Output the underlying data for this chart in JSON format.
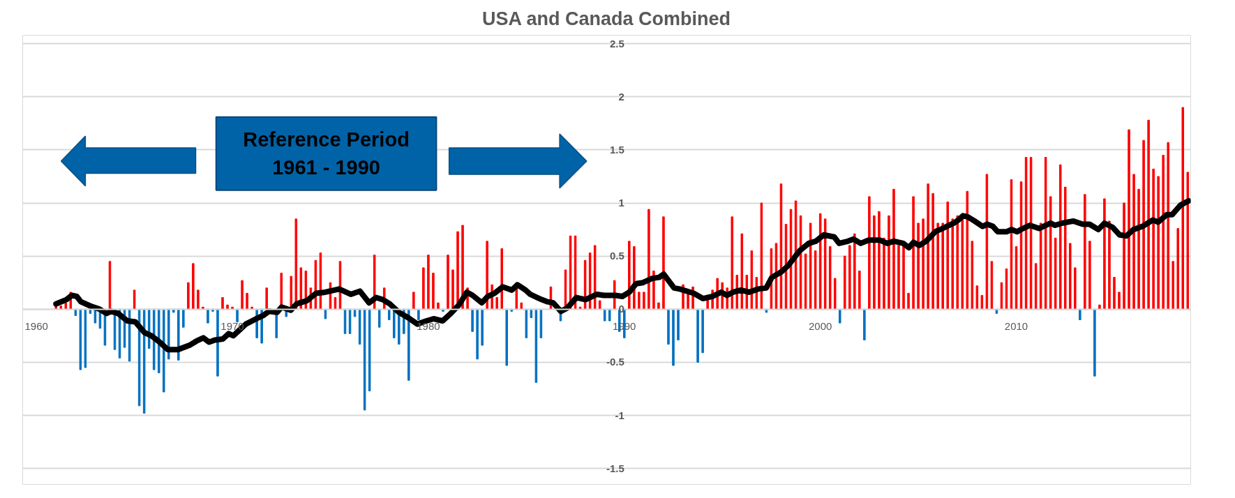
{
  "chart_data": {
    "type": "bar",
    "title": "USA and Canada Combined",
    "annotations": [
      "Reference Period\n1961 - 1990"
    ],
    "xlim": [
      1959.3,
      2018.9
    ],
    "xticks": [
      1960,
      1970,
      1980,
      1990,
      2000,
      2010
    ],
    "ylim": [
      -1.65,
      2.58
    ],
    "yticks": [
      -1.5,
      -1,
      -0.5,
      0,
      0.5,
      1,
      1.5,
      2,
      2.5
    ],
    "grid": "y",
    "series": [
      {
        "x": [
          1961,
          1961.25,
          1961.5,
          1961.75,
          1962,
          1962.25,
          1962.5,
          1962.75,
          1963,
          1963.25,
          1963.5,
          1963.75,
          1964,
          1964.25,
          1964.5,
          1964.75,
          1965,
          1965.25,
          1965.5,
          1965.75,
          1966,
          1966.25,
          1966.5,
          1966.75,
          1967,
          1967.25,
          1967.5,
          1967.75,
          1968,
          1968.25,
          1968.5,
          1968.75,
          1969,
          1969.25,
          1969.5,
          1969.75,
          1970,
          1970.25,
          1970.5,
          1970.75,
          1971,
          1971.25,
          1971.5,
          1971.75,
          1972,
          1972.25,
          1972.5,
          1972.75,
          1973,
          1973.25,
          1973.5,
          1973.75,
          1974,
          1974.25,
          1974.5,
          1974.75,
          1975,
          1975.25,
          1975.5,
          1975.75,
          1976,
          1976.25,
          1976.5,
          1976.75,
          1977,
          1977.25,
          1977.5,
          1977.75,
          1978,
          1978.25,
          1978.5,
          1978.75,
          1979,
          1979.25,
          1979.5,
          1979.75,
          1980,
          1980.25,
          1980.5,
          1980.75,
          1981,
          1981.25,
          1981.5,
          1981.75,
          1982,
          1982.25,
          1982.5,
          1982.75,
          1983,
          1983.25,
          1983.5,
          1983.75,
          1984,
          1984.25,
          1984.5,
          1984.75,
          1985,
          1985.25,
          1985.5,
          1985.75,
          1986,
          1986.25,
          1986.5,
          1986.75,
          1987,
          1987.25,
          1987.5,
          1987.75,
          1988,
          1988.25,
          1988.5,
          1988.75,
          1989,
          1989.25,
          1989.5,
          1989.75,
          1990,
          1990.25,
          1990.5,
          1990.75,
          1991,
          1991.25,
          1991.5,
          1991.75,
          1992,
          1992.25,
          1992.5,
          1992.75,
          1993,
          1993.25,
          1993.5,
          1993.75,
          1994,
          1994.25,
          1994.5,
          1994.75,
          1995,
          1995.25,
          1995.5,
          1995.75,
          1996,
          1996.25,
          1996.5,
          1996.75,
          1997,
          1997.25,
          1997.5,
          1997.75,
          1998,
          1998.25,
          1998.5,
          1998.75,
          1999,
          1999.25,
          1999.5,
          1999.75,
          2000,
          2000.25,
          2000.5,
          2000.75,
          2001,
          2001.25,
          2001.5,
          2001.75,
          2002,
          2002.25,
          2002.5,
          2002.75,
          2003,
          2003.25,
          2003.5,
          2003.75,
          2004,
          2004.25,
          2004.5,
          2004.75,
          2005,
          2005.25,
          2005.5,
          2005.75,
          2006,
          2006.25,
          2006.5,
          2006.75,
          2007,
          2007.25,
          2007.5,
          2007.75,
          2008,
          2008.25,
          2008.5,
          2008.75,
          2009,
          2009.25,
          2009.5,
          2009.75,
          2010,
          2010.25,
          2010.5,
          2010.75,
          2011,
          2011.25,
          2011.5,
          2011.75,
          2012,
          2012.25,
          2012.5,
          2012.75,
          2013,
          2013.25,
          2013.5,
          2013.75,
          2014,
          2014.25,
          2014.5,
          2014.75,
          2015,
          2015.25,
          2015.5,
          2015.75,
          2016,
          2016.25,
          2016.5,
          2016.75,
          2017,
          2017.25,
          2017.5,
          2017.75,
          2018,
          2018.25,
          2018.5,
          2018.75
        ],
        "values": [
          0.03,
          0.03,
          0.06,
          0.16,
          -0.06,
          -0.57,
          -0.55,
          -0.04,
          -0.13,
          -0.18,
          -0.34,
          0.45,
          -0.38,
          -0.46,
          -0.36,
          -0.49,
          0.18,
          -0.91,
          -0.98,
          -0.37,
          -0.57,
          -0.6,
          -0.78,
          -0.47,
          -0.03,
          -0.48,
          -0.17,
          0.25,
          0.43,
          0.18,
          0.02,
          -0.13,
          -0.02,
          -0.63,
          0.11,
          0.04,
          0.02,
          -0.12,
          0.27,
          0.15,
          0.02,
          -0.27,
          -0.32,
          0.2,
          null,
          -0.27,
          0.34,
          -0.07,
          0.31,
          0.85,
          0.39,
          0.36,
          0.2,
          0.46,
          0.53,
          -0.09,
          0.25,
          0.11,
          0.45,
          -0.23,
          -0.23,
          -0.07,
          -0.33,
          -0.95,
          -0.77,
          0.51,
          -0.17,
          0.2,
          -0.1,
          -0.27,
          -0.33,
          -0.23,
          -0.67,
          0.16,
          -0.1,
          0.39,
          0.51,
          0.34,
          0.06,
          -0.02,
          0.51,
          0.37,
          0.73,
          0.79,
          0.2,
          -0.21,
          -0.47,
          -0.34,
          0.64,
          0.23,
          0.11,
          0.57,
          -0.53,
          -0.02,
          0.25,
          0.06,
          -0.27,
          -0.08,
          -0.69,
          -0.27,
          null,
          0.21,
          null,
          -0.11,
          0.37,
          0.69,
          0.69,
          0.02,
          0.46,
          0.53,
          0.6,
          0.08,
          -0.11,
          -0.11,
          0.27,
          -0.21,
          -0.27,
          0.64,
          0.59,
          0.16,
          0.16,
          0.94,
          0.36,
          0.06,
          0.87,
          -0.33,
          -0.53,
          -0.29,
          0.23,
          0.16,
          0.21,
          -0.5,
          -0.41,
          0.11,
          0.18,
          0.29,
          0.25,
          0.2,
          0.87,
          0.32,
          0.71,
          0.32,
          0.55,
          0.3,
          1.0,
          -0.03,
          0.57,
          0.62,
          1.18,
          0.8,
          0.94,
          1.02,
          0.88,
          0.52,
          0.81,
          0.55,
          0.9,
          0.85,
          0.59,
          0.29,
          -0.13,
          0.5,
          0.6,
          0.71,
          0.36,
          -0.29,
          1.06,
          0.88,
          0.92,
          0.67,
          0.88,
          1.13,
          0.6,
          0.6,
          0.15,
          1.06,
          0.81,
          0.85,
          1.18,
          1.09,
          0.81,
          0.81,
          1.01,
          0.85,
          0.88,
          0.85,
          1.11,
          0.64,
          0.22,
          0.13,
          1.27,
          0.45,
          -0.04,
          0.25,
          0.38,
          1.22,
          0.59,
          1.2,
          1.43,
          1.43,
          0.43,
          0.81,
          1.43,
          1.06,
          0.67,
          1.36,
          1.15,
          0.62,
          0.39,
          -0.1,
          1.08,
          0.64,
          -0.63,
          0.04,
          1.04,
          0.83,
          0.3,
          0.16,
          1.0,
          1.69,
          1.27,
          1.13,
          1.59,
          1.78,
          1.32,
          1.25,
          1.45,
          1.57,
          0.45,
          0.76,
          1.9,
          1.29
        ],
        "colors": [
          "#ff0000",
          "#ff0000",
          "#ff0000",
          "#ff0000",
          "#0070c0",
          "#0070c0",
          "#0070c0",
          "#0070c0",
          "#0070c0",
          "#0070c0",
          "#0070c0",
          "#ff0000",
          "#0070c0",
          "#0070c0",
          "#0070c0",
          "#0070c0",
          "#ff0000",
          "#0070c0",
          "#0070c0",
          "#0070c0",
          "#0070c0",
          "#0070c0",
          "#0070c0",
          "#0070c0",
          "#0070c0",
          "#0070c0",
          "#0070c0",
          "#ff0000",
          "#ff0000",
          "#ff0000",
          "#ff0000",
          "#0070c0",
          "#0070c0",
          "#0070c0",
          "#ff0000",
          "#ff0000",
          "#ff0000",
          "#0070c0",
          "#ff0000",
          "#ff0000",
          "#ff0000",
          "#0070c0",
          "#0070c0",
          "#ff0000",
          "#ff0000",
          "#0070c0",
          "#ff0000",
          "#0070c0",
          "#ff0000",
          "#ff0000",
          "#ff0000",
          "#ff0000",
          "#ff0000",
          "#ff0000",
          "#ff0000",
          "#0070c0",
          "#ff0000",
          "#ff0000",
          "#ff0000",
          "#0070c0",
          "#0070c0",
          "#0070c0",
          "#0070c0",
          "#0070c0",
          "#0070c0",
          "#ff0000",
          "#0070c0",
          "#ff0000",
          "#0070c0",
          "#0070c0",
          "#0070c0",
          "#0070c0",
          "#0070c0",
          "#ff0000",
          "#0070c0",
          "#ff0000",
          "#ff0000",
          "#ff0000",
          "#ff0000",
          "#0070c0",
          "#ff0000",
          "#ff0000",
          "#ff0000",
          "#ff0000",
          "#ff0000",
          "#0070c0",
          "#0070c0",
          "#0070c0",
          "#ff0000",
          "#ff0000",
          "#ff0000",
          "#ff0000",
          "#0070c0",
          "#0070c0",
          "#ff0000",
          "#ff0000",
          "#0070c0",
          "#0070c0",
          "#0070c0",
          "#0070c0",
          "#ff0000",
          "#ff0000",
          "#ff0000",
          "#0070c0",
          "#ff0000",
          "#ff0000",
          "#ff0000",
          "#ff0000",
          "#ff0000",
          "#ff0000",
          "#ff0000",
          "#ff0000",
          "#0070c0",
          "#0070c0",
          "#ff0000",
          "#0070c0",
          "#0070c0",
          "#ff0000",
          "#ff0000",
          "#ff0000",
          "#ff0000",
          "#ff0000",
          "#ff0000",
          "#ff0000",
          "#ff0000",
          "#0070c0",
          "#0070c0",
          "#0070c0",
          "#ff0000",
          "#ff0000",
          "#ff0000",
          "#0070c0",
          "#0070c0",
          "#ff0000",
          "#ff0000",
          "#ff0000",
          "#ff0000",
          "#ff0000",
          "#ff0000",
          "#ff0000",
          "#ff0000",
          "#ff0000",
          "#ff0000",
          "#ff0000",
          "#ff0000",
          "#0070c0",
          "#ff0000",
          "#ff0000",
          "#ff0000",
          "#ff0000",
          "#ff0000",
          "#ff0000",
          "#ff0000",
          "#ff0000",
          "#ff0000",
          "#ff0000",
          "#ff0000",
          "#ff0000",
          "#ff0000",
          "#ff0000",
          "#0070c0",
          "#ff0000",
          "#ff0000",
          "#ff0000",
          "#ff0000",
          "#0070c0",
          "#ff0000",
          "#ff0000",
          "#ff0000",
          "#ff0000",
          "#ff0000",
          "#ff0000",
          "#ff0000",
          "#ff0000",
          "#ff0000",
          "#ff0000",
          "#ff0000",
          "#ff0000",
          "#ff0000",
          "#ff0000",
          "#ff0000",
          "#ff0000",
          "#ff0000",
          "#ff0000",
          "#ff0000",
          "#ff0000",
          "#ff0000",
          "#ff0000",
          "#ff0000",
          "#ff0000",
          "#ff0000",
          "#ff0000",
          "#0070c0",
          "#ff0000",
          "#ff0000",
          "#ff0000",
          "#ff0000",
          "#ff0000",
          "#ff0000",
          "#ff0000",
          "#ff0000",
          "#ff0000",
          "#ff0000",
          "#ff0000",
          "#ff0000",
          "#ff0000",
          "#ff0000",
          "#ff0000",
          "#ff0000",
          "#0070c0",
          "#ff0000",
          "#ff0000",
          "#0070c0",
          "#ff0000",
          "#ff0000",
          "#ff0000",
          "#ff0000",
          "#ff0000",
          "#ff0000",
          "#ff0000",
          "#ff0000",
          "#ff0000",
          "#ff0000",
          "#ff0000",
          "#ff0000",
          "#ff0000",
          "#ff0000",
          "#ff0000",
          "#ff0000",
          "#ff0000",
          "#ff0000",
          "#ff0000"
        ]
      },
      {
        "type": "line",
        "color": "#000000",
        "x": [
          1961.0,
          1961.53,
          1961.8,
          1962.06,
          1962.27,
          1962.76,
          1963.23,
          1963.58,
          1963.82,
          1964.17,
          1964.64,
          1965.05,
          1965.52,
          1965.87,
          1966.29,
          1966.7,
          1967.23,
          1967.81,
          1968.17,
          1968.52,
          1968.81,
          1969.11,
          1969.52,
          1969.81,
          1970.05,
          1970.34,
          1970.69,
          1971.22,
          1971.57,
          1971.87,
          1972.28,
          1972.51,
          1972.98,
          1973.28,
          1973.8,
          1974.28,
          1974.74,
          1975.45,
          1976.04,
          1976.51,
          1976.98,
          1977.33,
          1977.68,
          1978.03,
          1978.5,
          1978.97,
          1979.44,
          1979.91,
          1980.27,
          1980.73,
          1981.09,
          1981.56,
          1981.97,
          1982.26,
          1982.73,
          1983.03,
          1983.38,
          1983.79,
          1984.26,
          1984.55,
          1984.96,
          1985.2,
          1985.55,
          1985.79,
          1986.08,
          1986.37,
          1986.76,
          1987.08,
          1987.55,
          1988.02,
          1988.6,
          1988.96,
          1989.55,
          1989.9,
          1990.25,
          1990.6,
          1990.95,
          1991.42,
          1991.78,
          1992.01,
          1992.54,
          1992.83,
          1993.54,
          1994.01,
          1994.48,
          1994.95,
          1995.24,
          1995.54,
          1995.95,
          1996.36,
          1996.83,
          1997.24,
          1997.53,
          1998.0,
          1998.36,
          1998.94,
          1999.41,
          1999.77,
          2000.18,
          2000.71,
          2000.96,
          2001.41,
          2001.7,
          2002.06,
          2002.47,
          2003.05,
          2003.41,
          2003.76,
          2004.23,
          2004.52,
          2004.76,
          2005.05,
          2005.4,
          2005.87,
          2006.23,
          2006.81,
          2007.05,
          2007.28,
          2007.52,
          2007.87,
          2008.28,
          2008.52,
          2008.81,
          2009.05,
          2009.52,
          2009.75,
          2010.04,
          2010.34,
          2010.69,
          2011.16,
          2011.75,
          2011.98,
          2012.33,
          2012.92,
          2013.39,
          2013.74,
          2014.19,
          2014.5,
          2014.92,
          2015.27,
          2015.62,
          2015.98,
          2016.44,
          2016.97,
          2017.24,
          2017.68,
          2017.95,
          2018.38,
          2018.79
        ],
        "values": [
          0.05,
          0.09,
          0.13,
          0.12,
          0.07,
          0.03,
          0,
          -0.04,
          -0.02,
          -0.04,
          -0.11,
          -0.12,
          -0.22,
          -0.25,
          -0.31,
          -0.38,
          -0.38,
          -0.34,
          -0.3,
          -0.27,
          -0.31,
          -0.29,
          -0.28,
          -0.23,
          -0.25,
          -0.2,
          -0.14,
          -0.09,
          -0.06,
          -0.02,
          -0.03,
          0.02,
          -0.01,
          0.05,
          0.08,
          0.15,
          0.16,
          0.19,
          0.14,
          0.17,
          0.06,
          0.11,
          0.09,
          0.05,
          -0.03,
          -0.08,
          -0.14,
          -0.11,
          -0.09,
          -0.11,
          -0.05,
          0.04,
          0.16,
          0.13,
          0.06,
          0.12,
          0.15,
          0.21,
          0.18,
          0.23,
          0.18,
          0.14,
          0.11,
          0.09,
          0.07,
          0.06,
          -0.02,
          0.01,
          0.11,
          0.09,
          0.14,
          0.13,
          0.13,
          0.12,
          0.16,
          0.24,
          0.25,
          0.29,
          0.3,
          0.33,
          0.2,
          0.19,
          0.15,
          0.1,
          0.12,
          0.16,
          0.13,
          0.16,
          0.18,
          0.16,
          0.19,
          0.2,
          0.3,
          0.35,
          0.41,
          0.55,
          0.62,
          0.64,
          0.7,
          0.68,
          0.62,
          0.64,
          0.66,
          0.62,
          0.65,
          0.65,
          0.62,
          0.64,
          0.62,
          0.58,
          0.63,
          0.6,
          0.64,
          0.73,
          0.76,
          0.81,
          0.84,
          0.88,
          0.87,
          0.83,
          0.78,
          0.8,
          0.78,
          0.73,
          0.73,
          0.75,
          0.73,
          0.76,
          0.79,
          0.76,
          0.81,
          0.79,
          0.81,
          0.83,
          0.8,
          0.8,
          0.75,
          0.81,
          0.77,
          0.7,
          0.69,
          0.75,
          0.78,
          0.84,
          0.82,
          0.89,
          0.89,
          0.98,
          1.02
        ]
      }
    ]
  }
}
